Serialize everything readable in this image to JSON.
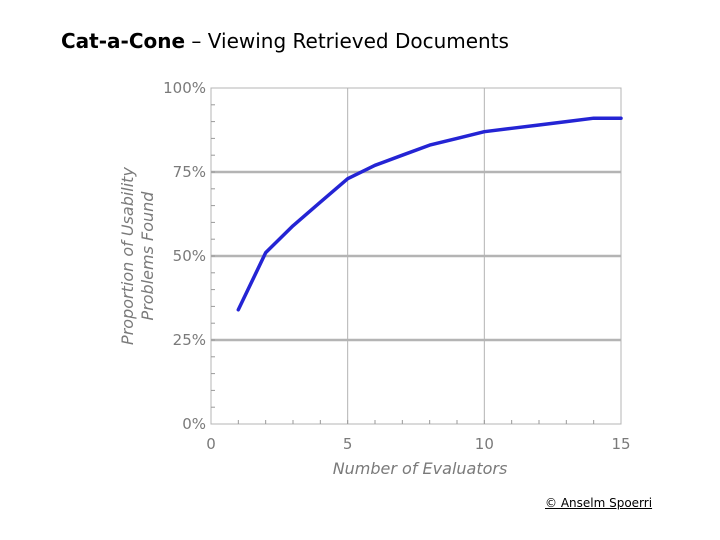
{
  "slide": {
    "title_bold": "Cat-a-Cone",
    "title_rest": " – Viewing Retrieved Documents",
    "copyright": "© Anselm Spoerri"
  },
  "chart_data": {
    "type": "line",
    "title": "",
    "xlabel": "Number of Evaluators",
    "ylabel": [
      "Proportion of Usability",
      "Problems Found"
    ],
    "xlim": [
      0,
      15
    ],
    "ylim": [
      0,
      100
    ],
    "x_ticks": [
      0,
      5,
      10,
      15
    ],
    "y_ticks": [
      0,
      25,
      50,
      75,
      100
    ],
    "x_tick_labels": [
      "0",
      "5",
      "10",
      "15"
    ],
    "y_tick_labels": [
      "0%",
      "25%",
      "50%",
      "75%",
      "100%"
    ],
    "grid": true,
    "legend": "none",
    "line_color": "#2424d4",
    "grid_color": "#b4b4b4",
    "series": [
      {
        "x": [
          1,
          2,
          3,
          4,
          5,
          6,
          7,
          8,
          9,
          10,
          11,
          12,
          13,
          14,
          15
        ],
        "values": [
          34,
          51,
          59,
          66,
          73,
          77,
          80,
          83,
          85,
          87,
          88,
          89,
          90,
          91,
          91
        ]
      }
    ]
  }
}
